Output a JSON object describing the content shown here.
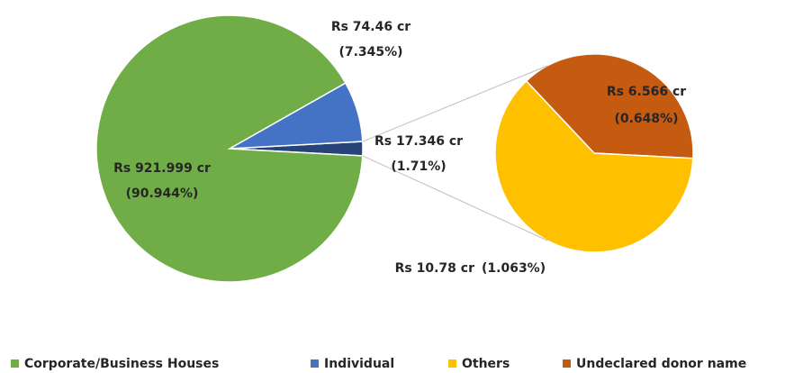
{
  "chart_data": {
    "type": "pie",
    "categories": [
      "Corporate/Business Houses",
      "Individual",
      null
    ],
    "values": [
      921.999,
      74.46,
      17.346
    ],
    "value_labels": [
      "Rs 921.999 cr",
      "Rs 74.46 cr",
      "Rs 17.346 cr"
    ],
    "percent_labels": [
      "(90.944%)",
      "(7.345%)",
      "(1.71%)"
    ],
    "colors": [
      "#70ad47",
      "#4472c4",
      "#264478"
    ],
    "secondary": {
      "categories": [
        "Others",
        "Undeclared donor name"
      ],
      "values": [
        10.78,
        6.566
      ],
      "value_labels": [
        "Rs 10.78 cr",
        "Rs 6.566 cr"
      ],
      "percent_labels": [
        "(1.063%)",
        "(0.648%)"
      ],
      "colors": [
        "#ffc000",
        "#c55a11"
      ]
    },
    "legend": "bottom"
  }
}
